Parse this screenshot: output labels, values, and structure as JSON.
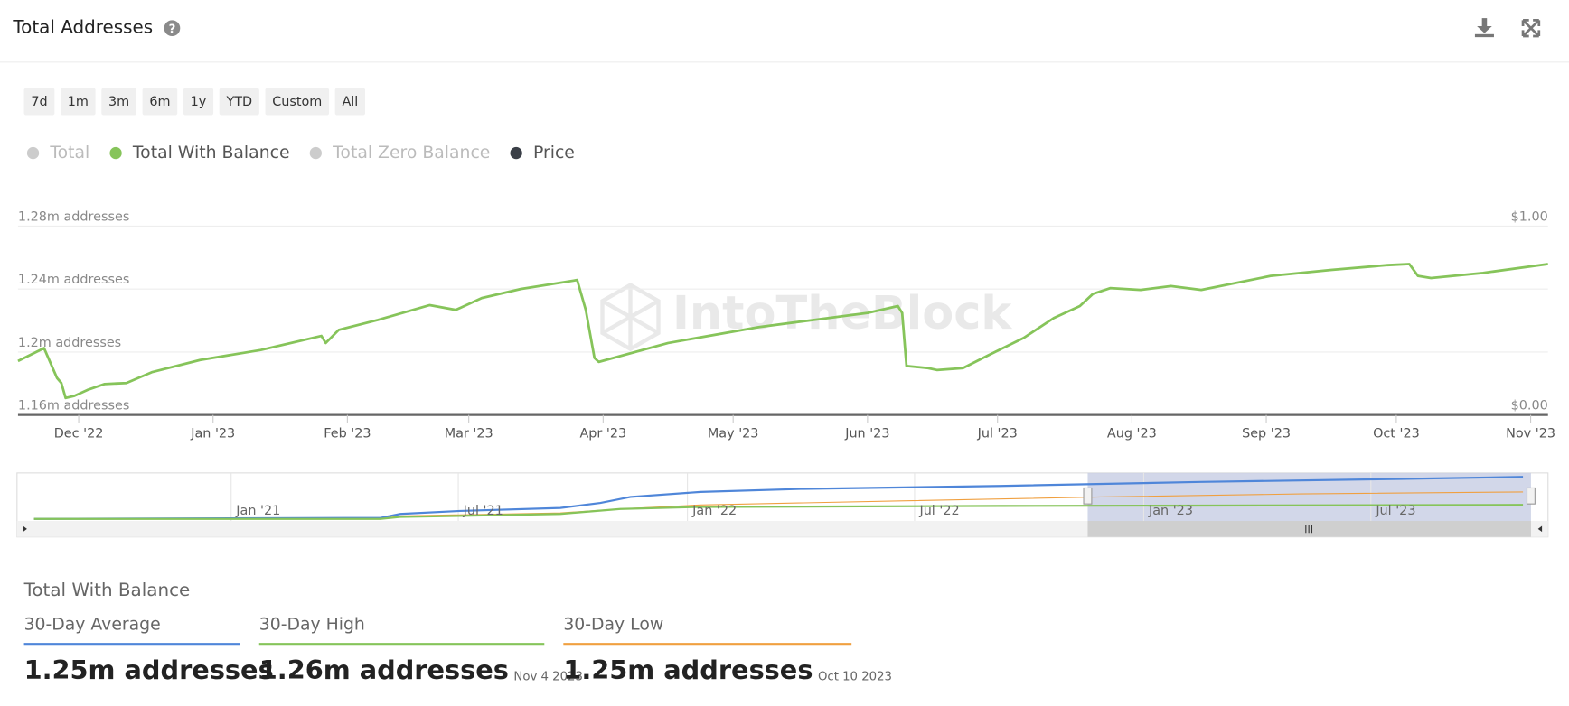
{
  "header": {
    "title": "Total Addresses"
  },
  "range_buttons": [
    "7d",
    "1m",
    "3m",
    "6m",
    "1y",
    "YTD",
    "Custom",
    "All"
  ],
  "legend": [
    {
      "name": "Total",
      "color": "#cccccc"
    },
    {
      "name": "Total With Balance",
      "color": "#86c45a"
    },
    {
      "name": "Total Zero Balance",
      "color": "#cccccc"
    },
    {
      "name": "Price",
      "color": "#3a3f47"
    }
  ],
  "watermark": "IntoTheBlock",
  "chart_data": {
    "type": "line",
    "x": [
      "2022-11-17",
      "2022-11-23",
      "2022-11-26",
      "2022-11-27",
      "2022-11-28",
      "2022-11-30",
      "2022-12-03",
      "2022-12-07",
      "2022-12-12",
      "2022-12-18",
      "2022-12-29",
      "2023-01-12",
      "2023-01-26",
      "2023-01-27",
      "2023-01-30",
      "2023-02-08",
      "2023-02-20",
      "2023-02-26",
      "2023-03-04",
      "2023-03-13",
      "2023-03-26",
      "2023-03-28",
      "2023-03-30",
      "2023-03-31",
      "2023-04-16",
      "2023-05-07",
      "2023-06-01",
      "2023-06-08",
      "2023-06-09",
      "2023-06-10",
      "2023-06-15",
      "2023-06-17",
      "2023-06-23",
      "2023-06-29",
      "2023-07-07",
      "2023-07-14",
      "2023-07-20",
      "2023-07-23",
      "2023-07-27",
      "2023-08-03",
      "2023-08-10",
      "2023-08-17",
      "2023-09-02",
      "2023-09-16",
      "2023-09-29",
      "2023-10-04",
      "2023-10-06",
      "2023-10-09",
      "2023-10-21",
      "2023-11-05"
    ],
    "series": [
      {
        "name": "Total With Balance",
        "color": "#86c45a",
        "values": [
          1194300,
          1202500,
          1183500,
          1180300,
          1170800,
          1172100,
          1175900,
          1179700,
          1180300,
          1187300,
          1194900,
          1201300,
          1210200,
          1205700,
          1214000,
          1220300,
          1229800,
          1226700,
          1234300,
          1240000,
          1245700,
          1226700,
          1196200,
          1193700,
          1205700,
          1215900,
          1224800,
          1229200,
          1224800,
          1191100,
          1189800,
          1188600,
          1189800,
          1198100,
          1208900,
          1221600,
          1229200,
          1236900,
          1240600,
          1239400,
          1241900,
          1239400,
          1248300,
          1252100,
          1255200,
          1255900,
          1248300,
          1247000,
          1250200,
          1255900
        ]
      }
    ],
    "xlim": [
      "2022-11-17",
      "2023-11-05"
    ],
    "xticks": [
      {
        "value": "2022-12-01",
        "label": "Dec '22"
      },
      {
        "value": "2023-01-01",
        "label": "Jan '23"
      },
      {
        "value": "2023-02-01",
        "label": "Feb '23"
      },
      {
        "value": "2023-03-01",
        "label": "Mar '23"
      },
      {
        "value": "2023-04-01",
        "label": "Apr '23"
      },
      {
        "value": "2023-05-01",
        "label": "May '23"
      },
      {
        "value": "2023-06-01",
        "label": "Jun '23"
      },
      {
        "value": "2023-07-01",
        "label": "Jul '23"
      },
      {
        "value": "2023-08-01",
        "label": "Aug '23"
      },
      {
        "value": "2023-09-01",
        "label": "Sep '23"
      },
      {
        "value": "2023-10-01",
        "label": "Oct '23"
      },
      {
        "value": "2023-11-01",
        "label": "Nov '23"
      }
    ],
    "ylim": [
      1160000,
      1280000
    ],
    "yticks": [
      {
        "value": 1160000,
        "label": "1.16m addresses"
      },
      {
        "value": 1200000,
        "label": "1.2m addresses"
      },
      {
        "value": 1240000,
        "label": "1.24m addresses"
      },
      {
        "value": 1280000,
        "label": "1.28m addresses"
      }
    ],
    "y2lim": [
      0,
      1
    ],
    "y2ticks": [
      {
        "value": 0,
        "label": "$0.00"
      },
      {
        "value": 1,
        "label": "$1.00"
      }
    ],
    "grid": true
  },
  "navigator": {
    "labels": [
      "Jan '21",
      "Jul '21",
      "Jan '22",
      "Jul '22",
      "Jan '23",
      "Jul '23"
    ]
  },
  "stats": {
    "title": "Total With Balance",
    "items": [
      {
        "label": "30-Day Average",
        "value": "1.25m addresses",
        "color": "#4f86d9"
      },
      {
        "label": "30-Day High",
        "value": "1.26m addresses",
        "date": "Nov 4 2023",
        "color": "#86c45a"
      },
      {
        "label": "30-Day Low",
        "value": "1.25m addresses",
        "date": "Oct 10 2023",
        "color": "#f0a040"
      }
    ]
  }
}
